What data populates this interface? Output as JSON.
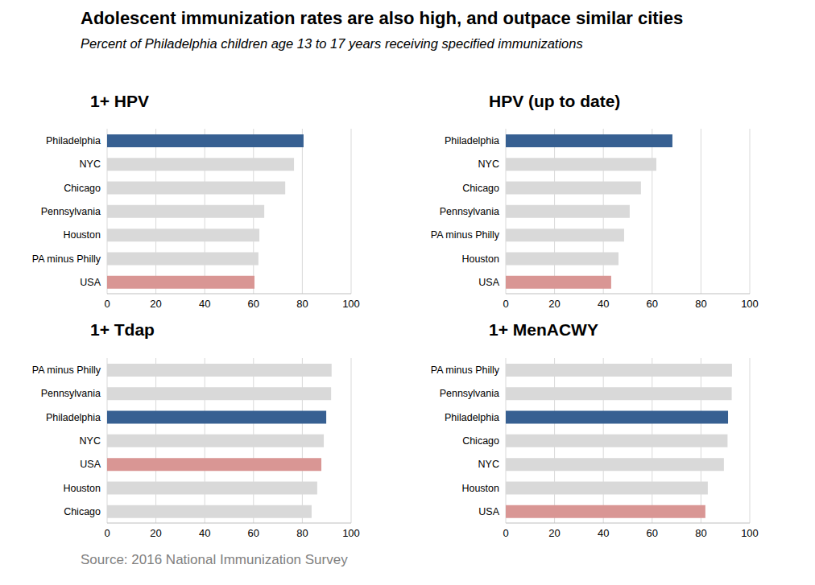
{
  "title": "Adolescent immunization rates are also high, and outpace similar cities",
  "subtitle": "Percent of Philadelphia children age 13 to 17 years receiving specified immunizations",
  "source": "Source: 2016 National Immunization Survey",
  "chart_data": [
    {
      "type": "bar",
      "orientation": "horizontal",
      "title": "1+ HPV",
      "categories": [
        "Philadelphia",
        "NYC",
        "Chicago",
        "Pennsylvania",
        "Houston",
        "PA minus Philly",
        "USA"
      ],
      "values": [
        80.5,
        76.6,
        73,
        64.4,
        62.4,
        62,
        60.4
      ],
      "colors": [
        "#376092",
        "#d9d9d9",
        "#d9d9d9",
        "#d9d9d9",
        "#d9d9d9",
        "#d9d9d9",
        "#d99694"
      ],
      "xlim": [
        0,
        100
      ],
      "xticks": [
        0,
        20,
        40,
        60,
        80,
        100
      ],
      "grid": true
    },
    {
      "type": "bar",
      "orientation": "horizontal",
      "title": "HPV (up to date)",
      "categories": [
        "Philadelphia",
        "NYC",
        "Chicago",
        "Pennsylvania",
        "PA minus Philly",
        "Houston",
        "USA"
      ],
      "values": [
        68.3,
        61.7,
        55.4,
        50.8,
        48.5,
        46.2,
        43.2
      ],
      "colors": [
        "#376092",
        "#d9d9d9",
        "#d9d9d9",
        "#d9d9d9",
        "#d9d9d9",
        "#d9d9d9",
        "#d99694"
      ],
      "xlim": [
        0,
        100
      ],
      "xticks": [
        0,
        20,
        40,
        60,
        80,
        100
      ],
      "grid": true
    },
    {
      "type": "bar",
      "orientation": "horizontal",
      "title": "1+ Tdap",
      "categories": [
        "PA minus Philly",
        "Pennsylvania",
        "Philadelphia",
        "NYC",
        "USA",
        "Houston",
        "Chicago"
      ],
      "values": [
        92,
        91.8,
        89.8,
        88.8,
        87.8,
        86.1,
        83.8
      ],
      "colors": [
        "#d9d9d9",
        "#d9d9d9",
        "#376092",
        "#d9d9d9",
        "#d99694",
        "#d9d9d9",
        "#d9d9d9"
      ],
      "xlim": [
        0,
        100
      ],
      "xticks": [
        0,
        20,
        40,
        60,
        80,
        100
      ],
      "grid": true
    },
    {
      "type": "bar",
      "orientation": "horizontal",
      "title": "1+ MenACWY",
      "categories": [
        "PA minus Philly",
        "Pennsylvania",
        "Philadelphia",
        "Chicago",
        "NYC",
        "Houston",
        "USA"
      ],
      "values": [
        92.7,
        92.6,
        91.1,
        90.9,
        89.4,
        82.8,
        81.8
      ],
      "colors": [
        "#d9d9d9",
        "#d9d9d9",
        "#376092",
        "#d9d9d9",
        "#d9d9d9",
        "#d9d9d9",
        "#d99694"
      ],
      "xlim": [
        0,
        100
      ],
      "xticks": [
        0,
        20,
        40,
        60,
        80,
        100
      ],
      "grid": true
    }
  ]
}
